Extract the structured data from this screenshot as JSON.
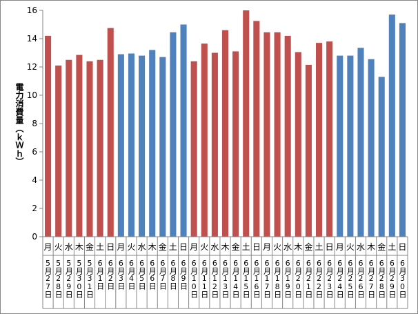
{
  "chart_data": {
    "type": "bar",
    "y_label": "電力消費量（ｋＷｈ）",
    "weekdays": [
      "月",
      "火",
      "水",
      "木",
      "金",
      "土",
      "日",
      "月",
      "火",
      "水",
      "木",
      "金",
      "土",
      "日",
      "月",
      "火",
      "水",
      "木",
      "金",
      "土",
      "日",
      "月",
      "火",
      "水",
      "木",
      "金",
      "土",
      "日",
      "月",
      "火",
      "水",
      "木",
      "金",
      "土",
      "日"
    ],
    "categories": [
      "5月27日",
      "5月28日",
      "5月29日",
      "5月30日",
      "5月31日",
      "6月1日",
      "6月2日",
      "6月3日",
      "6月4日",
      "6月5日",
      "6月6日",
      "6月7日",
      "6月8日",
      "6月9日",
      "6月10日",
      "6月11日",
      "6月12日",
      "6月13日",
      "6月14日",
      "6月15日",
      "6月16日",
      "6月17日",
      "6月18日",
      "6月19日",
      "6月20日",
      "6月21日",
      "6月22日",
      "6月23日",
      "6月24日",
      "6月25日",
      "6月26日",
      "6月27日",
      "6月28日",
      "6月29日",
      "6月30日"
    ],
    "values": [
      14.2,
      12.1,
      12.5,
      12.85,
      12.4,
      12.5,
      14.75,
      12.9,
      12.95,
      12.8,
      13.2,
      12.7,
      14.45,
      15.0,
      12.4,
      13.65,
      13.0,
      14.6,
      13.1,
      16.0,
      15.25,
      14.45,
      14.45,
      14.2,
      13.05,
      12.15,
      13.7,
      13.8,
      12.8,
      12.8,
      13.35,
      12.55,
      11.3,
      15.7,
      15.1
    ],
    "colors": [
      "#c0504d",
      "#c0504d",
      "#c0504d",
      "#c0504d",
      "#c0504d",
      "#c0504d",
      "#c0504d",
      "#4f81bd",
      "#4f81bd",
      "#4f81bd",
      "#4f81bd",
      "#4f81bd",
      "#4f81bd",
      "#4f81bd",
      "#c0504d",
      "#c0504d",
      "#c0504d",
      "#c0504d",
      "#c0504d",
      "#c0504d",
      "#c0504d",
      "#c0504d",
      "#c0504d",
      "#c0504d",
      "#c0504d",
      "#c0504d",
      "#c0504d",
      "#c0504d",
      "#4f81bd",
      "#4f81bd",
      "#4f81bd",
      "#4f81bd",
      "#4f81bd",
      "#4f81bd",
      "#4f81bd"
    ],
    "ylim": [
      0,
      16
    ],
    "yticks": [
      0,
      2,
      4,
      6,
      8,
      10,
      12,
      14,
      16
    ]
  }
}
